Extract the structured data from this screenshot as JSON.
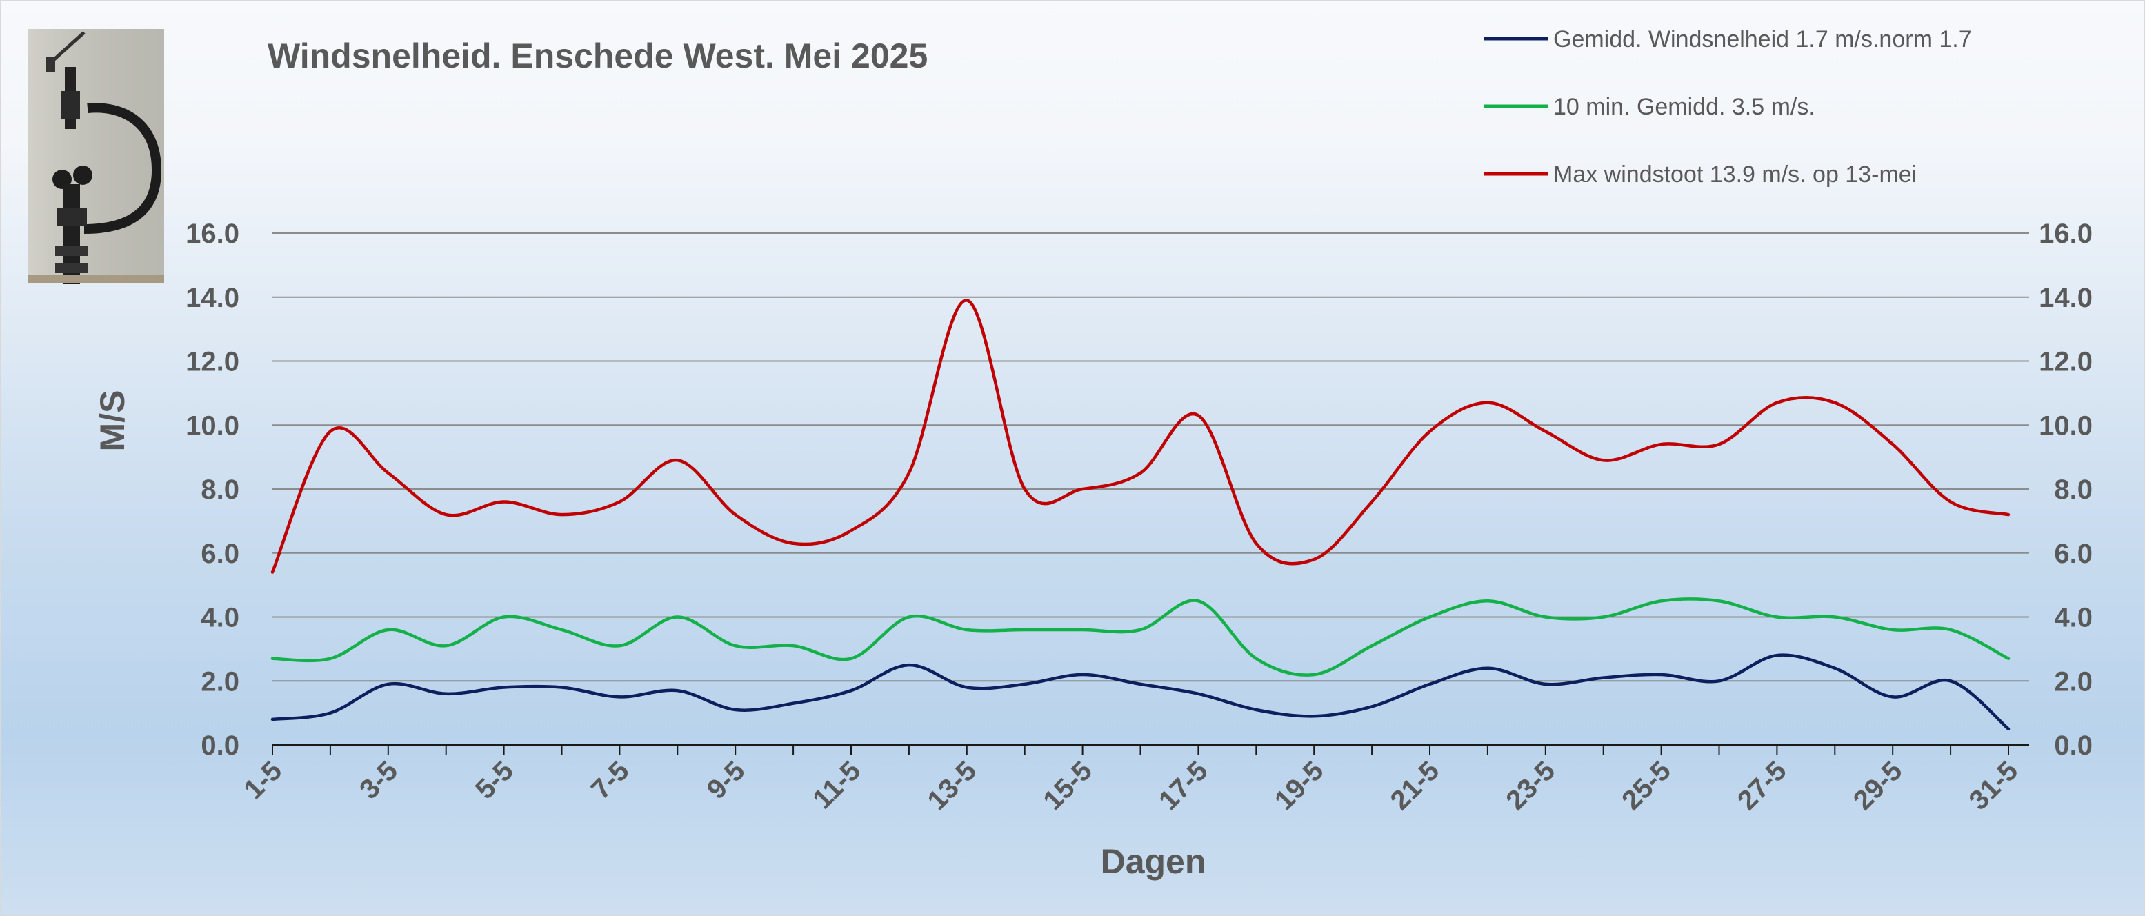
{
  "chart_data": {
    "type": "line",
    "title": "Windsnelheid. Enschede West. Mei 2025",
    "xlabel": "Dagen",
    "ylabel": "M/S",
    "ylim": [
      0,
      16
    ],
    "yticks": [
      "0.0",
      "2.0",
      "4.0",
      "6.0",
      "8.0",
      "10.0",
      "12.0",
      "14.0",
      "16.0"
    ],
    "y_axis_both_sides": true,
    "grid": true,
    "legend_position": "top-right",
    "x": [
      "1-5",
      "2-5",
      "3-5",
      "4-5",
      "5-5",
      "6-5",
      "7-5",
      "8-5",
      "9-5",
      "10-5",
      "11-5",
      "12-5",
      "13-5",
      "14-5",
      "15-5",
      "16-5",
      "17-5",
      "18-5",
      "19-5",
      "20-5",
      "21-5",
      "22-5",
      "23-5",
      "24-5",
      "25-5",
      "26-5",
      "27-5",
      "28-5",
      "29-5",
      "30-5",
      "31-5"
    ],
    "xtick_labels": [
      "1-5",
      "3-5",
      "5-5",
      "7-5",
      "9-5",
      "11-5",
      "13-5",
      "15-5",
      "17-5",
      "19-5",
      "21-5",
      "23-5",
      "25-5",
      "27-5",
      "29-5",
      "31-5"
    ],
    "series": [
      {
        "name": "Gemidd. Windsnelheid 1.7 m/s.norm 1.7",
        "color": "#0d1f5c",
        "values": [
          0.8,
          1.0,
          1.9,
          1.6,
          1.8,
          1.8,
          1.5,
          1.7,
          1.1,
          1.3,
          1.7,
          2.5,
          1.8,
          1.9,
          2.2,
          1.9,
          1.6,
          1.1,
          0.9,
          1.2,
          1.9,
          2.4,
          1.9,
          2.1,
          2.2,
          2.0,
          2.8,
          2.4,
          1.5,
          2.0,
          0.5
        ]
      },
      {
        "name": "10 min. Gemidd. 3.5 m/s.",
        "color": "#14b04a",
        "values": [
          2.7,
          2.7,
          3.6,
          3.1,
          4.0,
          3.6,
          3.1,
          4.0,
          3.1,
          3.1,
          2.7,
          4.0,
          3.6,
          3.6,
          3.6,
          3.6,
          4.5,
          2.7,
          2.2,
          3.1,
          4.0,
          4.5,
          4.0,
          4.0,
          4.5,
          4.5,
          4.0,
          4.0,
          3.6,
          3.6,
          2.7
        ]
      },
      {
        "name": "Max windstoot 13.9 m/s.   op 13-mei",
        "color": "#c00000",
        "values": [
          5.4,
          9.8,
          8.5,
          7.2,
          7.6,
          7.2,
          7.6,
          8.9,
          7.2,
          6.3,
          6.7,
          8.5,
          13.9,
          8.0,
          8.0,
          8.5,
          10.3,
          6.3,
          5.8,
          7.6,
          9.8,
          10.7,
          9.8,
          8.9,
          9.4,
          9.4,
          10.7,
          10.7,
          9.4,
          7.6,
          7.2
        ]
      }
    ]
  }
}
